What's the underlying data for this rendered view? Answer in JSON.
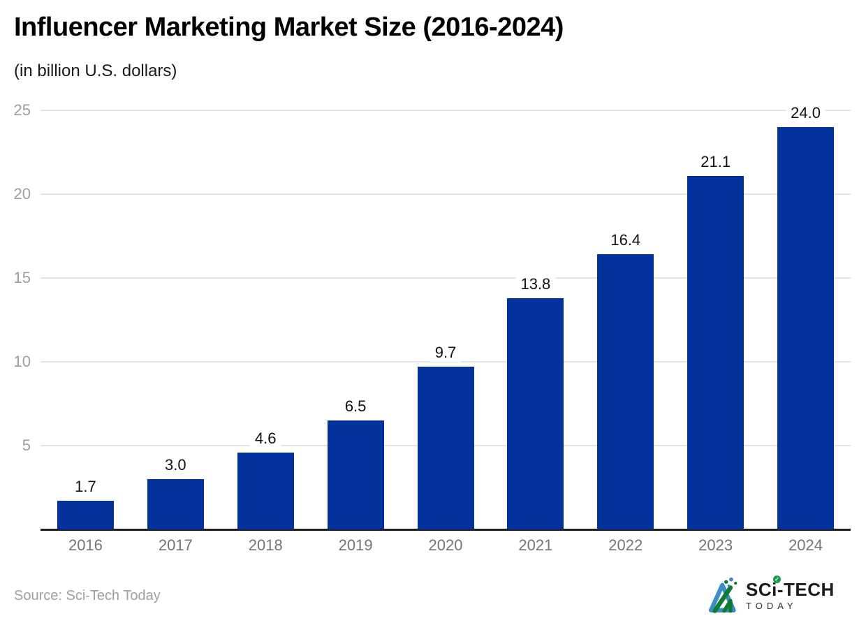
{
  "page": {
    "title": "Influencer Marketing Market Size (2016-2024)",
    "subtitle": "(in billion U.S. dollars)"
  },
  "chart_data": {
    "type": "bar",
    "title": "Influencer Marketing Market Size (2016-2024)",
    "subtitle": "(in billion U.S. dollars)",
    "categories": [
      "2016",
      "2017",
      "2018",
      "2019",
      "2020",
      "2021",
      "2022",
      "2023",
      "2024"
    ],
    "values": [
      1.7,
      3.0,
      4.6,
      6.5,
      9.7,
      13.8,
      16.4,
      21.1,
      24.0
    ],
    "value_labels": [
      "1.7",
      "3.0",
      "4.6",
      "6.5",
      "9.7",
      "13.8",
      "16.4",
      "21.1",
      "24.0"
    ],
    "xlabel": "",
    "ylabel": "",
    "ylim": [
      0,
      25
    ],
    "yticks": [
      5,
      10,
      15,
      20,
      25
    ],
    "grid": true,
    "legend": false,
    "bar_color": "#04329c",
    "gridline_color": "#e4e4e4",
    "axis_color": "#1f1f1f",
    "tick_label_color": "#9e9e9e",
    "x_label_color": "#757575",
    "value_label_color": "#111111"
  },
  "footer": {
    "source": "Source: Sci-Tech Today",
    "logo": {
      "line1": "SCi-TECH",
      "line2": "TODAY",
      "check_glyph": "✓",
      "mark_blue": "#3b8cc7",
      "mark_green": "#0e7a32"
    }
  }
}
